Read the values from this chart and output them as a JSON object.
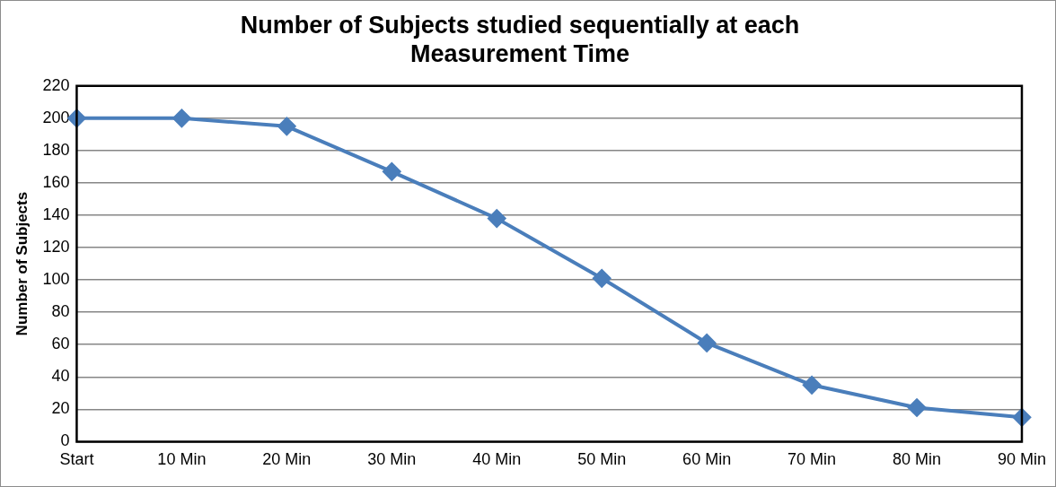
{
  "chart_data": {
    "type": "line",
    "title": "Number of Subjects studied sequentially at each Measurement Time",
    "ylabel": "Number of Subjects",
    "categories": [
      "Start",
      "10 Min",
      "20 Min",
      "30 Min",
      "40 Min",
      "50 Min",
      "60 Min",
      "70 Min",
      "80 Min",
      "90 Min"
    ],
    "series": [
      {
        "color": "#4a7ebb",
        "values": [
          200,
          200,
          195,
          167,
          138,
          101,
          61,
          35,
          21,
          15
        ]
      }
    ],
    "ylim": [
      0,
      220
    ],
    "yticks": [
      0,
      20,
      40,
      60,
      80,
      100,
      120,
      140,
      160,
      180,
      200,
      220
    ],
    "grid": "y",
    "legend": false,
    "marker": "diamond",
    "line_style": "solid"
  }
}
